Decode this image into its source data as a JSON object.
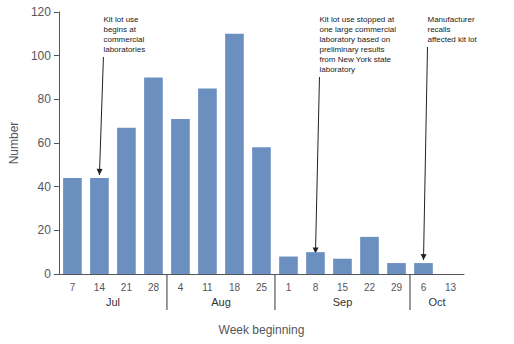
{
  "chart_data": {
    "type": "bar",
    "categories": [
      "7",
      "14",
      "21",
      "28",
      "4",
      "11",
      "18",
      "25",
      "1",
      "8",
      "15",
      "22",
      "29",
      "6",
      "13"
    ],
    "values": [
      44,
      44,
      67,
      90,
      71,
      85,
      110,
      58,
      8,
      10,
      7,
      17,
      5,
      5,
      0
    ],
    "color": "#6b8fbf",
    "ylim": [
      0,
      120
    ],
    "yticks": [
      0,
      20,
      40,
      60,
      80,
      100,
      120
    ],
    "ylabel": "Number",
    "xlabel": "Week beginning",
    "grid": false,
    "category_groups": [
      {
        "label": "Jul",
        "categories": [
          "7",
          "14",
          "21",
          "28"
        ]
      },
      {
        "label": "Aug",
        "categories": [
          "4",
          "11",
          "18",
          "25"
        ]
      },
      {
        "label": "Sep",
        "categories": [
          "1",
          "8",
          "15",
          "22",
          "29"
        ]
      },
      {
        "label": "Oct",
        "categories": [
          "6",
          "13"
        ]
      }
    ],
    "annotations": [
      {
        "text": "Kit lot use\nbegins at\ncommercial\nlaboratories",
        "x": "14",
        "y": 44
      },
      {
        "text": "Kit lot use stopped at\none large commercial\nlaboratory based on\npreliminary results\nfrom New York state\nlaboratory",
        "x": "8",
        "y": 8
      },
      {
        "text": "Manufacturer\nrecalls\naffected kit lot",
        "x": "6",
        "y": 5
      }
    ]
  }
}
